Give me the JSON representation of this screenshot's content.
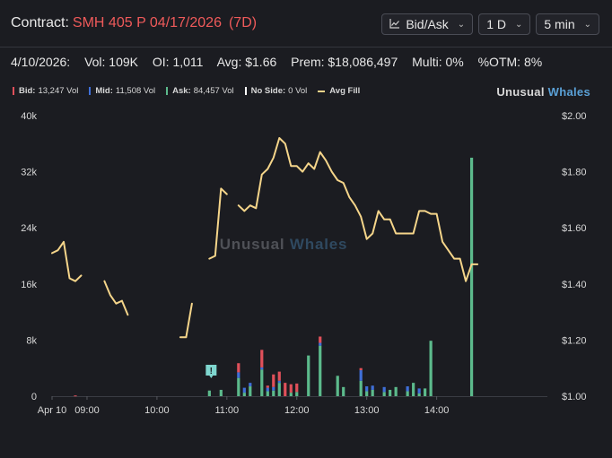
{
  "header": {
    "contract_label": "Contract:",
    "contract_symbol": "SMH 405 P 04/17/2026",
    "dte": "(7D)",
    "controls": {
      "chart_mode": "Bid/Ask",
      "range": "1 D",
      "interval": "5 min"
    }
  },
  "stats": {
    "date": "4/10/2026:",
    "vol": "Vol: 109K",
    "oi": "OI: 1,011",
    "avg": "Avg: $1.66",
    "prem": "Prem: $18,086,497",
    "multi": "Multi: 0%",
    "otm": "%OTM: 8%"
  },
  "legend": {
    "bid": {
      "label": "Bid:",
      "value": "13,247 Vol",
      "color": "#e0505a"
    },
    "mid": {
      "label": "Mid:",
      "value": "11,508 Vol",
      "color": "#3f6fd8"
    },
    "ask": {
      "label": "Ask:",
      "value": "84,457 Vol",
      "color": "#5cba8c"
    },
    "noside": {
      "label": "No Side:",
      "value": "0 Vol",
      "color": "#ffffff"
    },
    "avgfill": {
      "label": "Avg Fill",
      "color": "#f5d58a"
    }
  },
  "brand": {
    "part1": "Unusual",
    "part2": "Whales"
  },
  "watermark": {
    "part1": "Unusual",
    "part2": "Whales"
  },
  "chart_data": {
    "type": "bar",
    "x_tick_labels": [
      "Apr 10",
      "09:00",
      "10:00",
      "11:00",
      "12:00",
      "13:00",
      "14:00"
    ],
    "y_left": {
      "ticks": [
        "0",
        "8k",
        "16k",
        "24k",
        "32k",
        "40k"
      ],
      "range": [
        0,
        40000
      ]
    },
    "y_right": {
      "ticks": [
        "$1.00",
        "$1.20",
        "$1.40",
        "$1.60",
        "$1.80",
        "$2.00"
      ],
      "range": [
        1.0,
        2.0
      ]
    },
    "time_range": [
      "08:30",
      "15:35"
    ],
    "grid": false,
    "annotation_marker": {
      "time": "10:45",
      "label": "!"
    },
    "volume_bars": [
      {
        "t": "08:50",
        "bid": 100,
        "mid": 0,
        "ask": 0
      },
      {
        "t": "10:45",
        "bid": 0,
        "mid": 0,
        "ask": 800
      },
      {
        "t": "10:55",
        "bid": 0,
        "mid": 0,
        "ask": 900
      },
      {
        "t": "11:10",
        "bid": 1300,
        "mid": 800,
        "ask": 2600
      },
      {
        "t": "11:15",
        "bid": 0,
        "mid": 700,
        "ask": 500
      },
      {
        "t": "11:20",
        "bid": 0,
        "mid": 500,
        "ask": 1400
      },
      {
        "t": "11:30",
        "bid": 2500,
        "mid": 300,
        "ask": 3800
      },
      {
        "t": "11:35",
        "bid": 300,
        "mid": 500,
        "ask": 700
      },
      {
        "t": "11:40",
        "bid": 1800,
        "mid": 500,
        "ask": 800
      },
      {
        "t": "11:45",
        "bid": 1300,
        "mid": 300,
        "ask": 1900
      },
      {
        "t": "11:50",
        "bid": 1900,
        "mid": 0,
        "ask": 0
      },
      {
        "t": "11:55",
        "bid": 1200,
        "mid": 0,
        "ask": 500
      },
      {
        "t": "12:00",
        "bid": 1200,
        "mid": 0,
        "ask": 600
      },
      {
        "t": "12:10",
        "bid": 0,
        "mid": 0,
        "ask": 5800
      },
      {
        "t": "12:20",
        "bid": 900,
        "mid": 400,
        "ask": 7200
      },
      {
        "t": "12:35",
        "bid": 0,
        "mid": 0,
        "ask": 2900
      },
      {
        "t": "12:40",
        "bid": 0,
        "mid": 0,
        "ask": 1300
      },
      {
        "t": "12:55",
        "bid": 300,
        "mid": 1500,
        "ask": 2200
      },
      {
        "t": "13:00",
        "bid": 0,
        "mid": 700,
        "ask": 700
      },
      {
        "t": "13:05",
        "bid": 0,
        "mid": 600,
        "ask": 900
      },
      {
        "t": "13:15",
        "bid": 0,
        "mid": 700,
        "ask": 600
      },
      {
        "t": "13:20",
        "bid": 0,
        "mid": 0,
        "ask": 900
      },
      {
        "t": "13:25",
        "bid": 0,
        "mid": 0,
        "ask": 1300
      },
      {
        "t": "13:35",
        "bid": 0,
        "mid": 700,
        "ask": 700
      },
      {
        "t": "13:40",
        "bid": 0,
        "mid": 0,
        "ask": 1900
      },
      {
        "t": "13:45",
        "bid": 0,
        "mid": 700,
        "ask": 400
      },
      {
        "t": "13:50",
        "bid": 0,
        "mid": 0,
        "ask": 1100
      },
      {
        "t": "13:55",
        "bid": 0,
        "mid": 0,
        "ask": 7900
      },
      {
        "t": "14:30",
        "bid": 0,
        "mid": 0,
        "ask": 34000
      }
    ],
    "avg_fill_segments": [
      [
        [
          "08:30",
          1.51
        ],
        [
          "08:35",
          1.52
        ],
        [
          "08:40",
          1.55
        ],
        [
          "08:45",
          1.42
        ],
        [
          "08:50",
          1.41
        ],
        [
          "08:55",
          1.43
        ]
      ],
      [
        [
          "09:15",
          1.41
        ],
        [
          "09:20",
          1.36
        ],
        [
          "09:25",
          1.33
        ],
        [
          "09:30",
          1.34
        ],
        [
          "09:35",
          1.29
        ]
      ],
      [
        [
          "10:20",
          1.21
        ],
        [
          "10:25",
          1.21
        ],
        [
          "10:30",
          1.33
        ]
      ],
      [
        [
          "10:45",
          1.49
        ],
        [
          "10:50",
          1.5
        ],
        [
          "10:55",
          1.74
        ],
        [
          "11:00",
          1.72
        ]
      ],
      [
        [
          "11:10",
          1.68
        ],
        [
          "11:15",
          1.66
        ],
        [
          "11:20",
          1.68
        ],
        [
          "11:25",
          1.67
        ],
        [
          "11:30",
          1.79
        ],
        [
          "11:35",
          1.81
        ],
        [
          "11:40",
          1.85
        ],
        [
          "11:45",
          1.92
        ],
        [
          "11:50",
          1.9
        ],
        [
          "11:55",
          1.82
        ],
        [
          "12:00",
          1.82
        ],
        [
          "12:05",
          1.8
        ],
        [
          "12:10",
          1.83
        ],
        [
          "12:15",
          1.81
        ],
        [
          "12:20",
          1.87
        ],
        [
          "12:25",
          1.84
        ],
        [
          "12:30",
          1.8
        ],
        [
          "12:35",
          1.77
        ],
        [
          "12:40",
          1.76
        ],
        [
          "12:45",
          1.71
        ],
        [
          "12:50",
          1.68
        ],
        [
          "12:55",
          1.64
        ],
        [
          "13:00",
          1.56
        ],
        [
          "13:05",
          1.58
        ],
        [
          "13:10",
          1.66
        ],
        [
          "13:15",
          1.63
        ],
        [
          "13:20",
          1.63
        ],
        [
          "13:25",
          1.58
        ],
        [
          "13:30",
          1.58
        ],
        [
          "13:35",
          1.58
        ],
        [
          "13:40",
          1.58
        ],
        [
          "13:45",
          1.66
        ],
        [
          "13:50",
          1.66
        ],
        [
          "13:55",
          1.65
        ],
        [
          "14:00",
          1.65
        ],
        [
          "14:05",
          1.55
        ],
        [
          "14:10",
          1.52
        ],
        [
          "14:15",
          1.49
        ],
        [
          "14:20",
          1.49
        ],
        [
          "14:25",
          1.41
        ],
        [
          "14:30",
          1.47
        ],
        [
          "14:35",
          1.47
        ]
      ]
    ]
  }
}
